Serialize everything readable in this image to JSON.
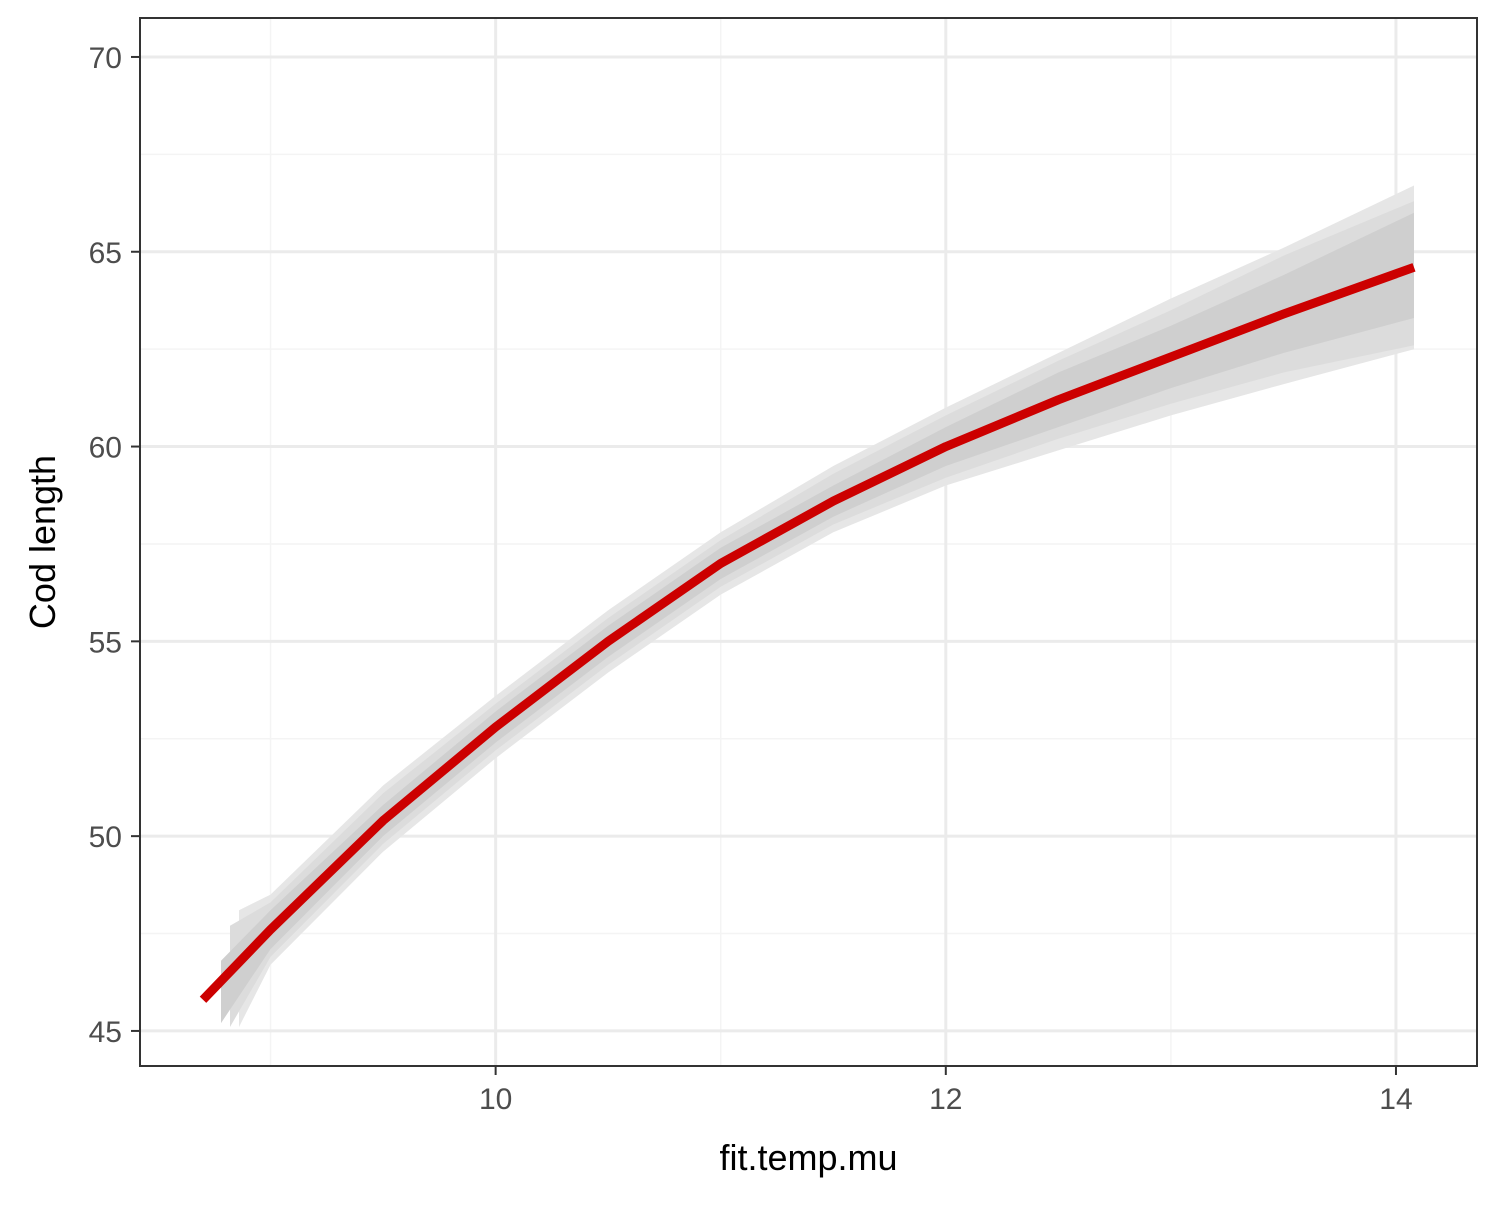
{
  "chart_data": {
    "type": "line",
    "title": "",
    "xlabel": "fit.temp.mu",
    "ylabel": "Cod length",
    "xlim": [
      8.42,
      14.36
    ],
    "ylim": [
      44.1,
      71.0
    ],
    "x_ticks": [
      10,
      12,
      14
    ],
    "x_tick_labels": [
      "10",
      "12",
      "14"
    ],
    "x_minor_ticks": [
      9,
      11,
      13
    ],
    "y_ticks": [
      45,
      50,
      55,
      60,
      65,
      70
    ],
    "y_tick_labels": [
      "45",
      "50",
      "55",
      "60",
      "65",
      "70"
    ],
    "y_minor_ticks": [
      47.5,
      52.5,
      57.5,
      62.5,
      67.5
    ],
    "grid": true,
    "legend": "none",
    "series": [
      {
        "values": [
          {
            "x": 8.7,
            "y": 45.8
          },
          {
            "x": 9.0,
            "y": 47.6
          },
          {
            "x": 9.5,
            "y": 50.4
          },
          {
            "x": 10.0,
            "y": 52.8
          },
          {
            "x": 10.5,
            "y": 55.0
          },
          {
            "x": 11.0,
            "y": 57.0
          },
          {
            "x": 11.5,
            "y": 58.6
          },
          {
            "x": 12.0,
            "y": 60.0
          },
          {
            "x": 12.5,
            "y": 61.2
          },
          {
            "x": 13.0,
            "y": 62.3
          },
          {
            "x": 13.5,
            "y": 63.4
          },
          {
            "x": 14.08,
            "y": 64.6
          }
        ]
      }
    ],
    "credible_bands": [
      {
        "x": [
          8.86,
          9.0,
          9.5,
          10.0,
          10.5,
          11.0,
          11.5,
          12.0,
          12.5,
          13.0,
          13.5,
          14.08
        ],
        "lower": [
          45.1,
          46.7,
          49.6,
          52.0,
          54.2,
          56.2,
          57.8,
          59.0,
          59.9,
          60.8,
          61.6,
          62.5
        ],
        "upper": [
          48.1,
          48.5,
          51.3,
          53.6,
          55.8,
          57.8,
          59.5,
          61.0,
          62.4,
          63.8,
          65.1,
          66.7
        ]
      },
      {
        "x": [
          8.82,
          9.0,
          9.5,
          10.0,
          10.5,
          11.0,
          11.5,
          12.0,
          12.5,
          13.0,
          13.5,
          14.08
        ],
        "lower": [
          45.1,
          46.9,
          49.8,
          52.2,
          54.4,
          56.4,
          58.0,
          59.2,
          60.2,
          61.1,
          61.9,
          62.6
        ],
        "upper": [
          47.7,
          48.3,
          51.1,
          53.4,
          55.6,
          57.6,
          59.3,
          60.8,
          62.2,
          63.5,
          64.9,
          66.3
        ]
      },
      {
        "x": [
          8.78,
          9.0,
          9.5,
          10.0,
          10.5,
          11.0,
          11.5,
          12.0,
          12.5,
          13.0,
          13.5,
          14.08
        ],
        "lower": [
          45.2,
          47.1,
          50.0,
          52.4,
          54.6,
          56.6,
          58.2,
          59.5,
          60.5,
          61.5,
          62.4,
          63.3
        ],
        "upper": [
          46.8,
          48.1,
          50.8,
          53.2,
          55.4,
          57.4,
          59.0,
          60.5,
          61.9,
          63.1,
          64.4,
          66.0
        ]
      }
    ],
    "colors": {
      "line": "#cc0000",
      "bands": [
        "#e6e6e6",
        "#dcdcdc",
        "#cfcfcf"
      ],
      "panel_border": "#333333",
      "grid_major": "#ebebeb",
      "grid_minor": "#f4f4f4",
      "tick_label": "#4d4d4d"
    }
  }
}
